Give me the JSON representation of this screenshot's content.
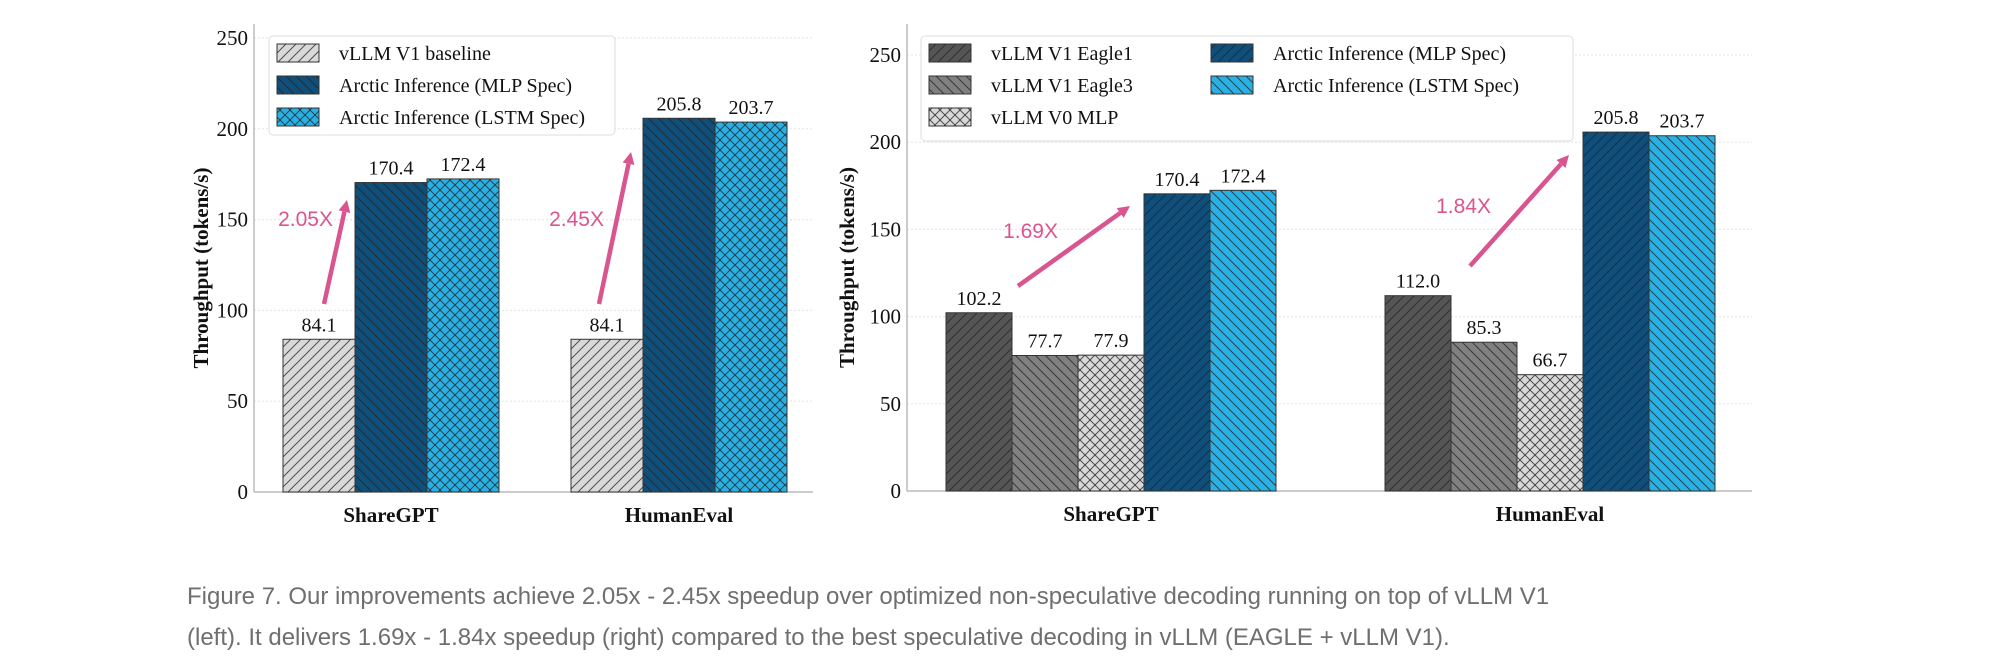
{
  "chart_data": [
    {
      "type": "bar",
      "ylabel": "Throughput (tokens/s)",
      "ylim": [
        0,
        250
      ],
      "yticks": [
        0,
        50,
        100,
        150,
        200,
        250
      ],
      "grid": true,
      "legend_position": "top-left",
      "categories": [
        "ShareGPT",
        "HumanEval"
      ],
      "series": [
        {
          "name": "vLLM V1 baseline",
          "values": [
            84.1,
            84.1
          ],
          "color": "#d9d9d9",
          "hatch": "/"
        },
        {
          "name": "Arctic Inference (MLP Spec)",
          "values": [
            170.4,
            205.8
          ],
          "color": "#0f4f7b",
          "hatch": "\\"
        },
        {
          "name": "Arctic Inference (LSTM Spec)",
          "values": [
            172.4,
            203.7
          ],
          "color": "#29b1e5",
          "hatch": "x"
        }
      ],
      "annotations": [
        "2.05X",
        "2.45X"
      ],
      "annotation_color": "#d9558f"
    },
    {
      "type": "bar",
      "ylabel": "Throughput (tokens/s)",
      "ylim": [
        0,
        250
      ],
      "yticks": [
        0,
        50,
        100,
        150,
        200,
        250
      ],
      "grid": true,
      "legend_position": "top-left",
      "categories": [
        "ShareGPT",
        "HumanEval"
      ],
      "series": [
        {
          "name": "vLLM V1 Eagle1",
          "values": [
            102.2,
            112.0
          ],
          "color": "#555555",
          "hatch": "/"
        },
        {
          "name": "vLLM V1 Eagle3",
          "values": [
            77.7,
            85.3
          ],
          "color": "#808080",
          "hatch": "\\"
        },
        {
          "name": "vLLM V0 MLP",
          "values": [
            77.9,
            66.7
          ],
          "color": "#d9d9d9",
          "hatch": "x"
        },
        {
          "name": "Arctic Inference (MLP Spec)",
          "values": [
            170.4,
            205.8
          ],
          "color": "#0f4f7b",
          "hatch": "/"
        },
        {
          "name": "Arctic Inference (LSTM Spec)",
          "values": [
            172.4,
            203.7
          ],
          "color": "#29b1e5",
          "hatch": "\\"
        }
      ],
      "annotations": [
        "1.69X",
        "1.84X"
      ],
      "annotation_color": "#d9558f"
    }
  ],
  "caption": {
    "line1": "Figure 7. Our improvements achieve 2.05x - 2.45x speedup over optimized non-speculative decoding running on top of vLLM V1",
    "line2": "(left). It delivers 1.69x - 1.84x speedup (right) compared to the best speculative decoding in vLLM (EAGLE + vLLM V1)."
  }
}
